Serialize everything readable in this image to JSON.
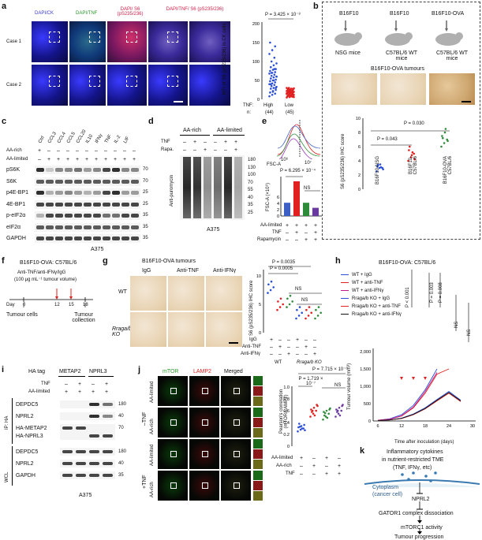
{
  "panels": {
    "a": {
      "label": "a",
      "channel_headers": [
        "DAPI/CK",
        "DAPI/TNF",
        "DAPI/ S6 (pS235/236)",
        "DAPI/TNF/ S6 (pS235/236)"
      ],
      "rows": [
        "Case 1",
        "Case 2"
      ],
      "pvalue": "P = 3.425 × 10⁻⁸",
      "ylabel": "MFI of S6 (pS235/236) in CK cells",
      "yticks": [
        "0",
        "50",
        "100",
        "150",
        "200"
      ],
      "tnf_label": "TNF:",
      "n_label": "n:",
      "groups": [
        "High",
        "Low"
      ],
      "ns": [
        "(44)",
        "(45)"
      ]
    },
    "b": {
      "label": "b",
      "models": [
        "B16F10",
        "B16F10",
        "B16F10-OVA"
      ],
      "hosts": [
        "NSG mice",
        "C57BL/6 WT mice",
        "C57BL/6 WT mice"
      ],
      "tumour_title": "B16F10-OVA tumours",
      "pvalue_top": "P = 0.030",
      "pvalue_left": "P = 0.043",
      "ylabel": "S6 (pS235/236) IHC score",
      "yticks": [
        "0",
        "2",
        "4",
        "6",
        "8",
        "10"
      ],
      "xcats": [
        "B16F10-NSG",
        "B16F10-C57BL/6",
        "B16F10-OVA C57BL/6"
      ]
    },
    "c": {
      "label": "c",
      "conditions": [
        "Ctrl",
        "CCL3",
        "CCL4",
        "CCL5",
        "CCL20",
        "IL10",
        "IFNγ",
        "TNF",
        "IL-2",
        "LIF"
      ],
      "row_labels": [
        "AA-rich",
        "AA-limited"
      ],
      "aa_rich_row": [
        "+",
        "–",
        "–",
        "–",
        "–",
        "–",
        "–",
        "–",
        "–",
        "–",
        "–"
      ],
      "aa_limited_row": [
        "–",
        "+",
        "+",
        "+",
        "+",
        "+",
        "+",
        "+",
        "+",
        "+",
        "+"
      ],
      "blots": [
        "pS6K",
        "S6K",
        "p4E-BP1",
        "4E-BP1",
        "p-eIF2α",
        "eIF2α",
        "GAPDH"
      ],
      "mw": [
        "70",
        "70",
        "25",
        "25",
        "35",
        "35",
        "35"
      ],
      "cell_line": "A375"
    },
    "d": {
      "label": "d",
      "groups": [
        "AA-rich",
        "AA-limited"
      ],
      "row_labels": [
        "TNF",
        "Rapa."
      ],
      "tnf_row": [
        "–",
        "+",
        "–",
        "–",
        "+",
        "+"
      ],
      "rapa_row": [
        "–",
        "–",
        "+",
        "–",
        "–",
        "+"
      ],
      "ylabel": "Anti-puromycin",
      "mw": [
        "180",
        "130",
        "100",
        "70",
        "55",
        "40",
        "35",
        "25"
      ],
      "cell_line": "A375"
    },
    "e": {
      "label": "e",
      "xaxis": "FSC-A",
      "xtick1": "10⁶",
      "xtick2": "10⁷",
      "pvalue": "P = 6.295 × 10⁻⁴",
      "ns": "NS",
      "ylabel": "FSC-A (×10⁶)",
      "yticks": [
        "0",
        "2",
        "4",
        "6"
      ],
      "row_labels": [
        "AA-limited",
        "TNF",
        "Rapamycin"
      ],
      "aa_row": [
        "+",
        "+",
        "+",
        "+"
      ],
      "tnf_row": [
        "–",
        "+",
        "–",
        "+"
      ],
      "rapa_row": [
        "–",
        "–",
        "+",
        "+"
      ],
      "bars": [
        2.1,
        5.5,
        2.1,
        1.3
      ],
      "bar_colors": [
        "#3b5fc4",
        "#e0211f",
        "#2e8b3a",
        "#6a3aa0"
      ]
    },
    "f": {
      "label": "f",
      "title": "B16F10-OVA: C57BL/6",
      "treatment": "Anti-TNF/anti-IFNγ/IgG",
      "dose": "(100 μg mL⁻¹ tumour volume)",
      "day_label": "Day",
      "days": [
        "0",
        "12",
        "15",
        "18"
      ],
      "left_event": "Tumour cells",
      "right_event": "Tumour collection"
    },
    "g": {
      "label": "g",
      "title": "B16F10-OVA tumours",
      "cols": [
        "IgG",
        "Anti-TNF",
        "Anti-IFNγ"
      ],
      "rows": [
        "WT",
        "Rraga/b KO"
      ],
      "pvalue_top": "P = 0.0035",
      "pvalue_second": "P = 0.0005",
      "ns": [
        "NS",
        "NS"
      ],
      "ylabel": "S6 (pS235/236) IHC score",
      "yticks": [
        "0",
        "5",
        "10"
      ],
      "row_labels": [
        "IgG",
        "Anti-TNF",
        "Anti-IFNγ"
      ],
      "igg_row": [
        "+",
        "–",
        "–",
        "+",
        "–",
        "–"
      ],
      "tnf_row": [
        "–",
        "+",
        "–",
        "–",
        "+",
        "–"
      ],
      "ifn_row": [
        "–",
        "–",
        "+",
        "–",
        "–",
        "+"
      ],
      "group_labels": [
        "WT",
        "Rraga/b KO"
      ]
    },
    "h": {
      "label": "h",
      "title": "B16F10-OVA: C57BL/6",
      "legend": [
        "WT + IgG",
        "WT + anti-TNF",
        "WT + anti-IFNγ",
        "Rraga/b KO + IgG",
        "Rraga/b KO + anti-TNF",
        "Rraga/b KO + anti-IFNγ"
      ],
      "legend_colors": [
        "#2b4fd6",
        "#e0211f",
        "#c01a8a",
        "#2b4fd6",
        "#e0211f",
        "#111111"
      ],
      "pvals": [
        "P < 0.001",
        "P = 0.003",
        "P = 0.008"
      ],
      "ns": [
        "NS",
        "NS"
      ],
      "ylabel": "Tumour volume (mm³)",
      "yticks": [
        "0",
        "500",
        "1,000",
        "1,500",
        "2,000"
      ],
      "xlabel": "Time after inoculation (days)",
      "xticks": [
        "6",
        "12",
        "18",
        "24",
        "30"
      ]
    },
    "i": {
      "label": "i",
      "ha_tag": "HA tag",
      "constructs": [
        "METAP2",
        "NPRL3"
      ],
      "row_labels": [
        "TNF",
        "AA-limited"
      ],
      "tnf_row": [
        "–",
        "+",
        "–",
        "+"
      ],
      "aa_row": [
        "+",
        "+",
        "+",
        "+"
      ],
      "ip_label": "IP: HA",
      "wcl_label": "WCL",
      "blots_ip": [
        "DEPDC5",
        "NPRL2",
        "HA-METAP2",
        "HA-NPRL3"
      ],
      "blots_wcl": [
        "DEPDC5",
        "NPRL2",
        "GAPDH"
      ],
      "mw_ip": [
        "180",
        "40",
        "70"
      ],
      "mw_wcl": [
        "180",
        "40",
        "35"
      ],
      "cell_line": "A375"
    },
    "j": {
      "label": "j",
      "channels": [
        "mTOR",
        "LAMP2",
        "Merged"
      ],
      "side_groups": [
        "–TNF",
        "+TNF"
      ],
      "rows": [
        "AA-limited",
        "AA-rich",
        "AA-limited",
        "AA-rich"
      ],
      "pvalue_top": "P = 7.715 × 10⁻⁶",
      "pvalue_second": "P = 1.719 × 10⁻⁷",
      "ns": "NS",
      "ylabel": "Pearson's correlation (mTOR/LAMP2)",
      "yticks": [
        "0",
        "0.2",
        "0.4",
        "0.6",
        "0.8",
        "1.0"
      ],
      "row_labels": [
        "AA-limited",
        "AA-rich",
        "TNF"
      ],
      "aa_lim_row": [
        "+",
        "–",
        "+",
        "–"
      ],
      "aa_rich_row": [
        "–",
        "+",
        "–",
        "+"
      ],
      "tnf_row": [
        "–",
        "–",
        "+",
        "+"
      ]
    },
    "k": {
      "label": "k",
      "top_text": [
        "Inflammatory cytokines",
        "in nutrient-restricted TME",
        "(TNF, IFNγ, etc)"
      ],
      "cytoplasm": [
        "Cytoplasm",
        "(cancer cell)"
      ],
      "nodes": [
        "NPRL2",
        "GATOR1 complex dissociation",
        "mTORC1 activity",
        "Tumour progression"
      ]
    }
  }
}
